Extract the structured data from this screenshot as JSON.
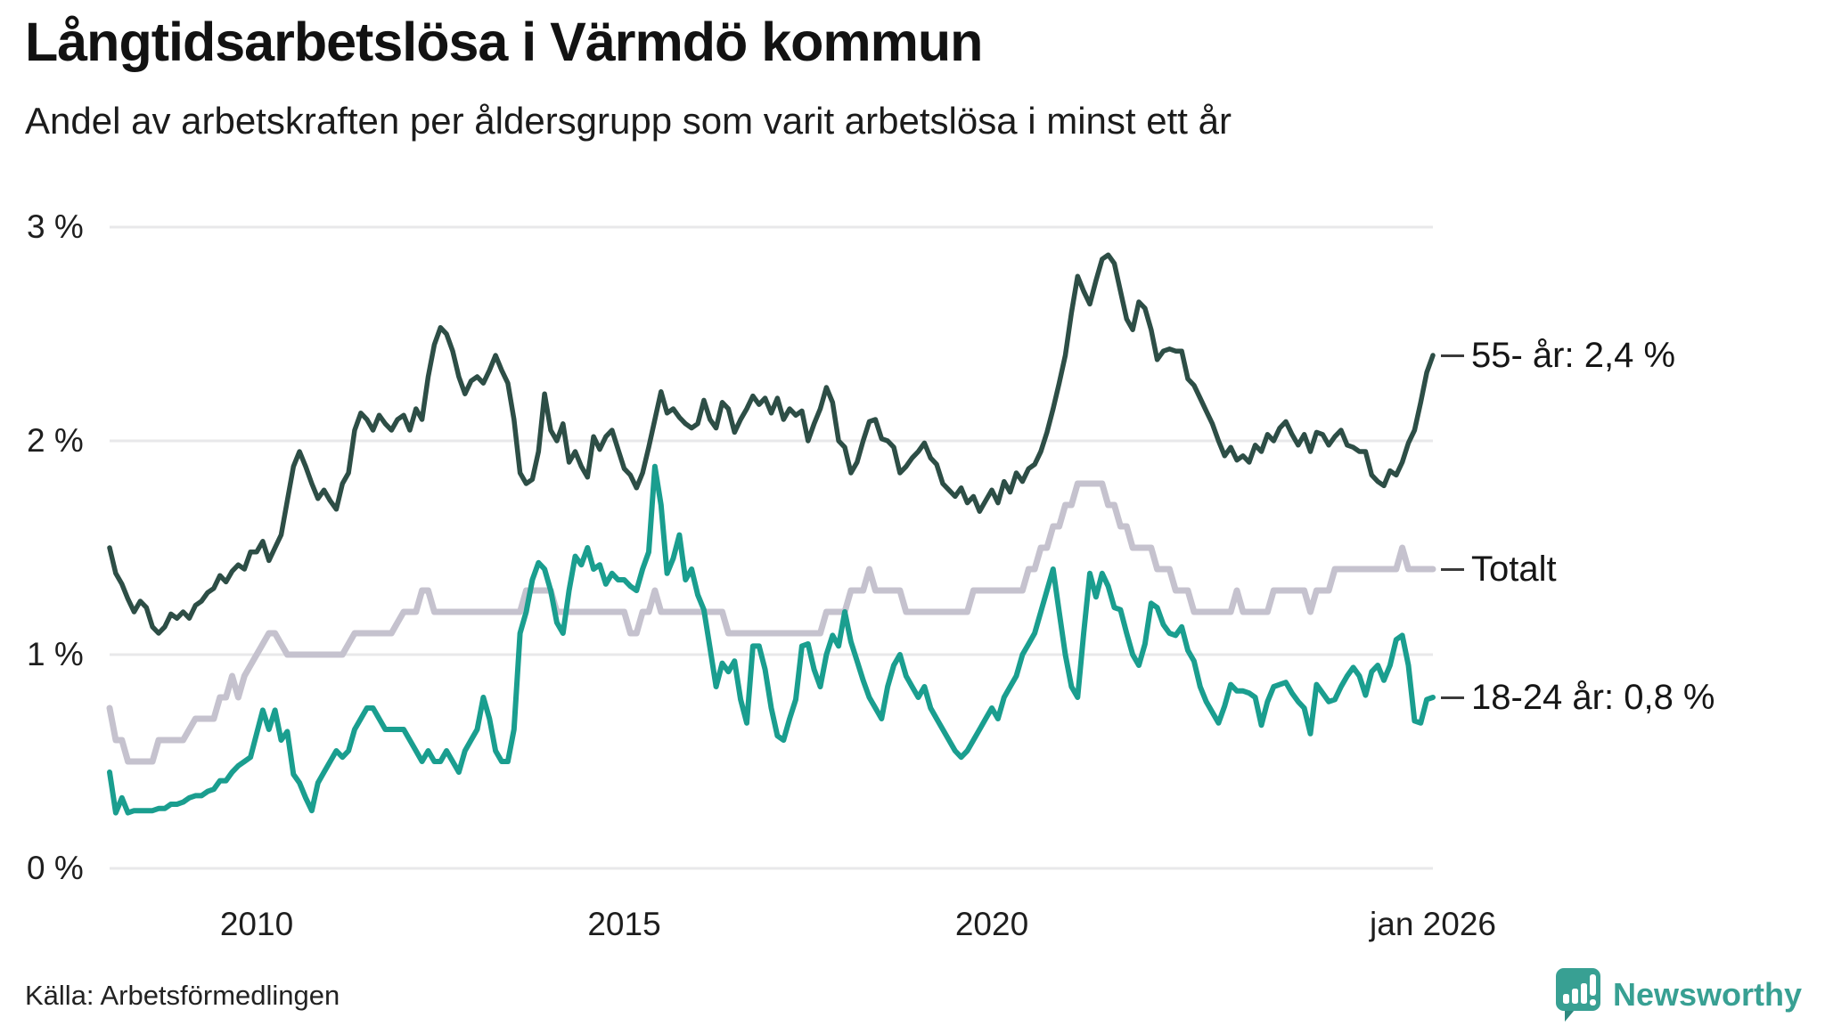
{
  "title": "Långtidsarbetslösa i Värmdö kommun",
  "subtitle": "Andel av arbetskraften per åldersgrupp som varit arbetslösa i minst ett år",
  "source": "Källa: Arbetsförmedlingen",
  "brand": {
    "name": "Newsworthy"
  },
  "colors": {
    "series_55": "#2d4e46",
    "series_totalt": "#c5c2ce",
    "series_1824": "#1a9e8f",
    "grid": "#e8e8ea",
    "tick_dash": "#3a3a3a",
    "brand_teal": "#38a093"
  },
  "chart_data": {
    "type": "line",
    "title": "Långtidsarbetslösa i Värmdö kommun",
    "subtitle": "Andel av arbetskraften per åldersgrupp som varit arbetslösa i minst ett år",
    "unit": "% av arbetskraften",
    "grid": true,
    "legend_position": "right-end-labels",
    "x_axis": {
      "start_year": 2008,
      "points_per_year": 12,
      "end_label_month": "jan 2026",
      "ticks": [
        {
          "label": "2010",
          "year": 2010
        },
        {
          "label": "2015",
          "year": 2015
        },
        {
          "label": "2020",
          "year": 2020
        },
        {
          "label": "jan 2026",
          "year": 2026
        }
      ]
    },
    "y_axis": {
      "range": [
        0,
        3
      ],
      "ticks": [
        {
          "label": "3 %",
          "value": 3
        },
        {
          "label": "2 %",
          "value": 2
        },
        {
          "label": "1 %",
          "value": 1
        },
        {
          "label": "0 %",
          "value": 0
        }
      ]
    },
    "series": [
      {
        "name": "55- år",
        "end_label": "55- år: 2,4 %",
        "end_value": "2,4 %",
        "color": "#2d4e46",
        "stroke_width": 5.5,
        "values": [
          1.5,
          1.38,
          1.33,
          1.26,
          1.2,
          1.25,
          1.22,
          1.13,
          1.1,
          1.13,
          1.19,
          1.17,
          1.2,
          1.17,
          1.23,
          1.25,
          1.29,
          1.31,
          1.37,
          1.34,
          1.39,
          1.42,
          1.4,
          1.48,
          1.48,
          1.53,
          1.44,
          1.5,
          1.56,
          1.72,
          1.88,
          1.95,
          1.88,
          1.8,
          1.73,
          1.77,
          1.72,
          1.68,
          1.8,
          1.85,
          2.05,
          2.13,
          2.1,
          2.05,
          2.12,
          2.08,
          2.05,
          2.1,
          2.12,
          2.05,
          2.15,
          2.1,
          2.3,
          2.45,
          2.53,
          2.5,
          2.42,
          2.3,
          2.22,
          2.28,
          2.3,
          2.27,
          2.33,
          2.4,
          2.33,
          2.27,
          2.1,
          1.85,
          1.8,
          1.82,
          1.95,
          2.22,
          2.05,
          2.0,
          2.08,
          1.9,
          1.95,
          1.88,
          1.83,
          2.02,
          1.96,
          2.02,
          2.05,
          1.96,
          1.87,
          1.84,
          1.78,
          1.85,
          1.97,
          2.1,
          2.23,
          2.13,
          2.15,
          2.11,
          2.08,
          2.06,
          2.08,
          2.19,
          2.1,
          2.06,
          2.18,
          2.15,
          2.04,
          2.1,
          2.15,
          2.21,
          2.17,
          2.2,
          2.13,
          2.2,
          2.1,
          2.15,
          2.12,
          2.14,
          2.0,
          2.08,
          2.15,
          2.25,
          2.18,
          2.0,
          1.97,
          1.85,
          1.9,
          2.0,
          2.09,
          2.1,
          2.01,
          2.0,
          1.97,
          1.85,
          1.88,
          1.92,
          1.95,
          1.99,
          1.92,
          1.89,
          1.8,
          1.77,
          1.74,
          1.78,
          1.71,
          1.74,
          1.67,
          1.72,
          1.77,
          1.71,
          1.81,
          1.76,
          1.85,
          1.81,
          1.87,
          1.89,
          1.95,
          2.04,
          2.15,
          2.27,
          2.4,
          2.6,
          2.77,
          2.7,
          2.64,
          2.75,
          2.85,
          2.87,
          2.83,
          2.7,
          2.57,
          2.52,
          2.65,
          2.62,
          2.52,
          2.38,
          2.42,
          2.43,
          2.42,
          2.42,
          2.29,
          2.26,
          2.2,
          2.14,
          2.08,
          2.0,
          1.93,
          1.97,
          1.91,
          1.93,
          1.9,
          1.98,
          1.95,
          2.03,
          2.0,
          2.06,
          2.09,
          2.03,
          1.98,
          2.03,
          1.95,
          2.04,
          2.03,
          1.98,
          2.02,
          2.05,
          1.98,
          1.97,
          1.95,
          1.95,
          1.84,
          1.81,
          1.79,
          1.86,
          1.84,
          1.9,
          1.99,
          2.05,
          2.18,
          2.32,
          2.4
        ]
      },
      {
        "name": "Totalt",
        "end_label": "Totalt",
        "end_value": "1,4 %",
        "color": "#c5c2ce",
        "stroke_width": 7,
        "values": [
          0.75,
          0.6,
          0.6,
          0.5,
          0.5,
          0.5,
          0.5,
          0.5,
          0.6,
          0.6,
          0.6,
          0.6,
          0.6,
          0.65,
          0.7,
          0.7,
          0.7,
          0.7,
          0.8,
          0.8,
          0.9,
          0.8,
          0.9,
          0.95,
          1.0,
          1.05,
          1.1,
          1.1,
          1.05,
          1.0,
          1.0,
          1.0,
          1.0,
          1.0,
          1.0,
          1.0,
          1.0,
          1.0,
          1.0,
          1.05,
          1.1,
          1.1,
          1.1,
          1.1,
          1.1,
          1.1,
          1.1,
          1.15,
          1.2,
          1.2,
          1.2,
          1.3,
          1.3,
          1.2,
          1.2,
          1.2,
          1.2,
          1.2,
          1.2,
          1.2,
          1.2,
          1.2,
          1.2,
          1.2,
          1.2,
          1.2,
          1.2,
          1.2,
          1.3,
          1.3,
          1.3,
          1.3,
          1.3,
          1.2,
          1.2,
          1.2,
          1.2,
          1.2,
          1.2,
          1.2,
          1.2,
          1.2,
          1.2,
          1.2,
          1.2,
          1.1,
          1.1,
          1.2,
          1.2,
          1.3,
          1.2,
          1.2,
          1.2,
          1.2,
          1.2,
          1.2,
          1.2,
          1.2,
          1.2,
          1.2,
          1.2,
          1.1,
          1.1,
          1.1,
          1.1,
          1.1,
          1.1,
          1.1,
          1.1,
          1.1,
          1.1,
          1.1,
          1.1,
          1.1,
          1.1,
          1.1,
          1.1,
          1.2,
          1.2,
          1.2,
          1.2,
          1.3,
          1.3,
          1.3,
          1.4,
          1.3,
          1.3,
          1.3,
          1.3,
          1.3,
          1.2,
          1.2,
          1.2,
          1.2,
          1.2,
          1.2,
          1.2,
          1.2,
          1.2,
          1.2,
          1.2,
          1.3,
          1.3,
          1.3,
          1.3,
          1.3,
          1.3,
          1.3,
          1.3,
          1.3,
          1.4,
          1.4,
          1.5,
          1.5,
          1.6,
          1.6,
          1.7,
          1.7,
          1.8,
          1.8,
          1.8,
          1.8,
          1.8,
          1.7,
          1.7,
          1.6,
          1.6,
          1.5,
          1.5,
          1.5,
          1.5,
          1.4,
          1.4,
          1.4,
          1.3,
          1.3,
          1.3,
          1.2,
          1.2,
          1.2,
          1.2,
          1.2,
          1.2,
          1.2,
          1.3,
          1.2,
          1.2,
          1.2,
          1.2,
          1.2,
          1.3,
          1.3,
          1.3,
          1.3,
          1.3,
          1.3,
          1.2,
          1.3,
          1.3,
          1.3,
          1.4,
          1.4,
          1.4,
          1.4,
          1.4,
          1.4,
          1.4,
          1.4,
          1.4,
          1.4,
          1.4,
          1.5,
          1.4,
          1.4,
          1.4,
          1.4,
          1.4
        ]
      },
      {
        "name": "18-24 år",
        "end_label": "18-24 år: 0,8 %",
        "end_value": "0,8 %",
        "color": "#1a9e8f",
        "stroke_width": 6,
        "values": [
          0.45,
          0.26,
          0.33,
          0.26,
          0.27,
          0.27,
          0.27,
          0.27,
          0.28,
          0.28,
          0.3,
          0.3,
          0.31,
          0.33,
          0.34,
          0.34,
          0.36,
          0.37,
          0.41,
          0.41,
          0.45,
          0.48,
          0.5,
          0.52,
          0.63,
          0.74,
          0.65,
          0.74,
          0.6,
          0.64,
          0.44,
          0.4,
          0.33,
          0.27,
          0.4,
          0.45,
          0.5,
          0.55,
          0.52,
          0.55,
          0.65,
          0.7,
          0.75,
          0.75,
          0.7,
          0.65,
          0.65,
          0.65,
          0.65,
          0.6,
          0.55,
          0.5,
          0.55,
          0.5,
          0.5,
          0.55,
          0.5,
          0.45,
          0.55,
          0.6,
          0.65,
          0.8,
          0.7,
          0.55,
          0.5,
          0.5,
          0.65,
          1.1,
          1.2,
          1.35,
          1.43,
          1.4,
          1.3,
          1.15,
          1.1,
          1.3,
          1.46,
          1.42,
          1.5,
          1.4,
          1.42,
          1.33,
          1.38,
          1.35,
          1.35,
          1.32,
          1.3,
          1.4,
          1.48,
          1.88,
          1.7,
          1.38,
          1.45,
          1.56,
          1.35,
          1.4,
          1.28,
          1.21,
          1.03,
          0.85,
          0.96,
          0.92,
          0.97,
          0.79,
          0.68,
          1.04,
          1.04,
          0.93,
          0.75,
          0.62,
          0.6,
          0.7,
          0.79,
          1.04,
          1.05,
          0.93,
          0.85,
          1.0,
          1.09,
          1.04,
          1.2,
          1.06,
          0.97,
          0.88,
          0.8,
          0.75,
          0.7,
          0.85,
          0.95,
          1.0,
          0.9,
          0.85,
          0.8,
          0.85,
          0.75,
          0.7,
          0.65,
          0.6,
          0.55,
          0.52,
          0.55,
          0.6,
          0.65,
          0.7,
          0.75,
          0.7,
          0.8,
          0.85,
          0.9,
          1.0,
          1.05,
          1.1,
          1.2,
          1.3,
          1.4,
          1.2,
          1.0,
          0.85,
          0.8,
          1.1,
          1.38,
          1.27,
          1.38,
          1.32,
          1.22,
          1.21,
          1.1,
          1.0,
          0.95,
          1.05,
          1.24,
          1.22,
          1.14,
          1.1,
          1.09,
          1.13,
          1.02,
          0.97,
          0.85,
          0.78,
          0.73,
          0.68,
          0.76,
          0.86,
          0.83,
          0.83,
          0.82,
          0.8,
          0.67,
          0.78,
          0.85,
          0.86,
          0.87,
          0.82,
          0.78,
          0.75,
          0.63,
          0.86,
          0.82,
          0.78,
          0.79,
          0.85,
          0.9,
          0.94,
          0.9,
          0.81,
          0.92,
          0.95,
          0.88,
          0.95,
          1.07,
          1.09,
          0.95,
          0.69,
          0.68,
          0.79,
          0.8
        ]
      }
    ]
  }
}
